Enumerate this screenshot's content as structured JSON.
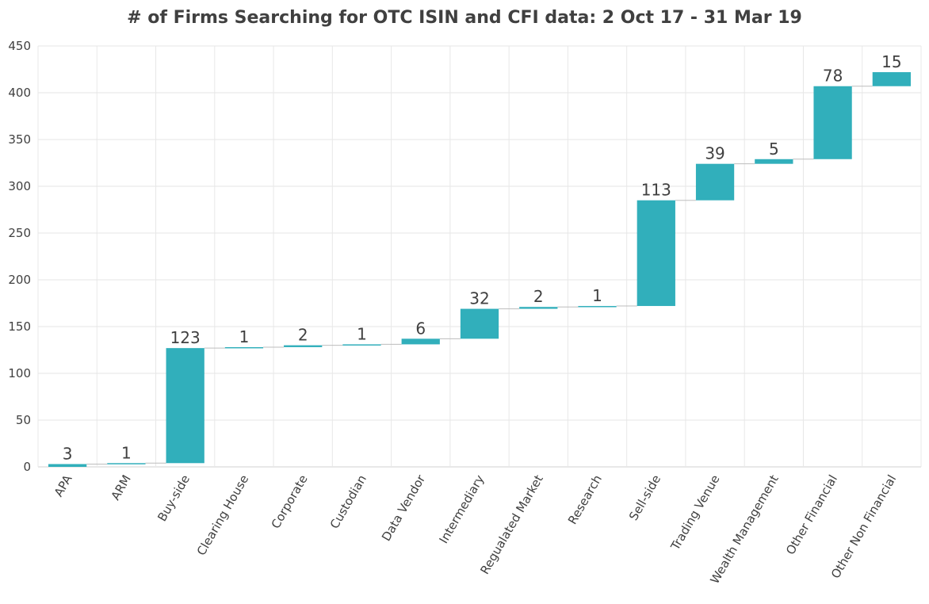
{
  "chart_data": {
    "type": "bar",
    "subtype": "waterfall",
    "title": "# of Firms Searching for OTC ISIN and CFI data: 2 Oct 17 - 31 Mar 19",
    "xlabel": "",
    "ylabel": "",
    "ylim": [
      0,
      450
    ],
    "yticks": [
      "0",
      "50",
      "100",
      "150",
      "200",
      "250",
      "300",
      "350",
      "400",
      "450"
    ],
    "grid": true,
    "legend": "none",
    "bar_color": "#31AFBB",
    "categories": [
      "APA",
      "ARM",
      "Buy-side",
      "Clearing House",
      "Corporate",
      "Custodian",
      "Data Vendor",
      "Intermediary",
      "Regualated Market",
      "Research",
      "Sell-side",
      "Trading Venue",
      "Wealth Management",
      "Other Financial",
      "Other Non Financial"
    ],
    "values": [
      3,
      1,
      123,
      1,
      2,
      1,
      6,
      32,
      2,
      1,
      113,
      39,
      5,
      78,
      15
    ],
    "data_labels": [
      "3",
      "1",
      "123",
      "1",
      "2",
      "1",
      "6",
      "32",
      "2",
      "1",
      "113",
      "39",
      "5",
      "78",
      "15"
    ]
  }
}
